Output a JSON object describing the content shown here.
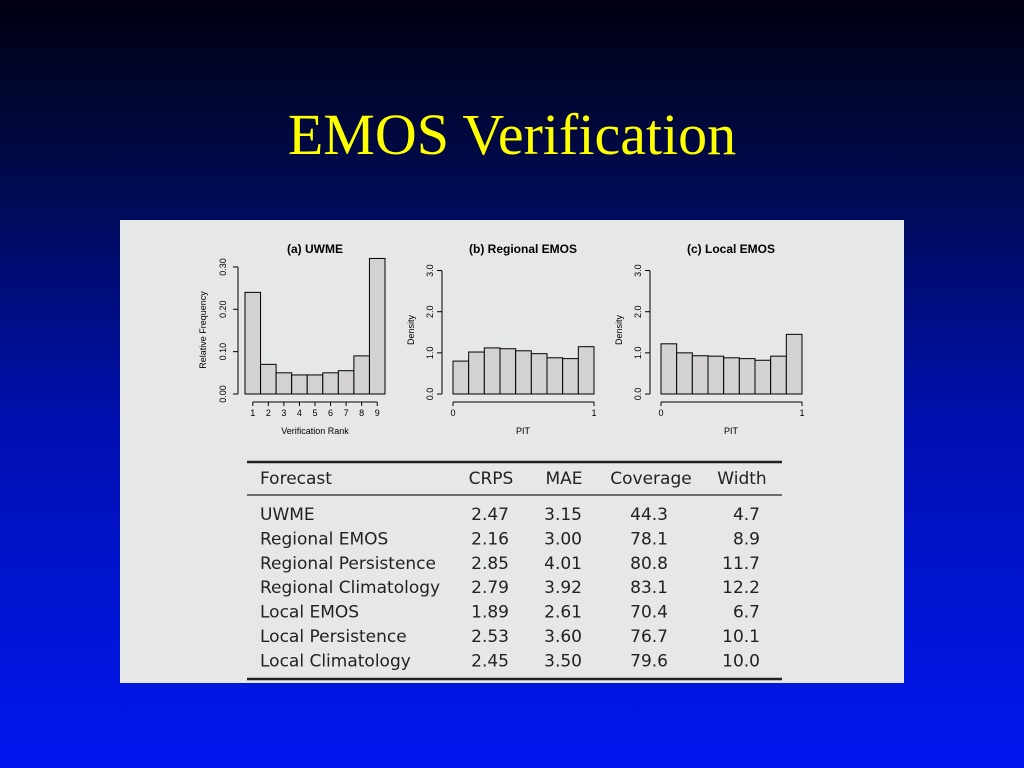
{
  "title": "EMOS Verification",
  "chart_data": [
    {
      "type": "bar",
      "title": "(a) UWME",
      "xlabel": "Verification Rank",
      "ylabel": "Relative Frequency",
      "categories": [
        "1",
        "2",
        "3",
        "4",
        "5",
        "6",
        "7",
        "8",
        "9"
      ],
      "values": [
        0.24,
        0.07,
        0.05,
        0.045,
        0.045,
        0.05,
        0.055,
        0.09,
        0.32
      ],
      "ylim": [
        0,
        0.34
      ],
      "yticks": [
        "0.00",
        "0.10",
        "0.20",
        "0.30"
      ],
      "ytick_values": [
        0,
        0.1,
        0.2,
        0.3
      ]
    },
    {
      "type": "bar",
      "title": "(b) Regional EMOS",
      "xlabel": "PIT",
      "ylabel": "Density",
      "x_tick_labels": [
        "0",
        "1"
      ],
      "values": [
        0.8,
        1.02,
        1.12,
        1.1,
        1.05,
        0.98,
        0.88,
        0.86,
        1.15
      ],
      "ylim": [
        0,
        3.5
      ],
      "yticks": [
        "0.0",
        "1.0",
        "2.0",
        "3.0"
      ],
      "ytick_values": [
        0,
        1,
        2,
        3
      ]
    },
    {
      "type": "bar",
      "title": "(c) Local EMOS",
      "xlabel": "PIT",
      "ylabel": "Density",
      "x_tick_labels": [
        "0",
        "1"
      ],
      "values": [
        1.22,
        1.0,
        0.93,
        0.92,
        0.88,
        0.86,
        0.82,
        0.92,
        1.45
      ],
      "ylim": [
        0,
        3.5
      ],
      "yticks": [
        "0.0",
        "1.0",
        "2.0",
        "3.0"
      ],
      "ytick_values": [
        0,
        1,
        2,
        3
      ]
    },
    {
      "type": "table",
      "columns": [
        "Forecast",
        "CRPS",
        "MAE",
        "Coverage",
        "Width"
      ],
      "rows": [
        [
          "UWME",
          "2.47",
          "3.15",
          "44.3",
          "4.7"
        ],
        [
          "Regional EMOS",
          "2.16",
          "3.00",
          "78.1",
          "8.9"
        ],
        [
          "Regional Persistence",
          "2.85",
          "4.01",
          "80.8",
          "11.7"
        ],
        [
          "Regional Climatology",
          "2.79",
          "3.92",
          "83.1",
          "12.2"
        ],
        [
          "Local EMOS",
          "1.89",
          "2.61",
          "70.4",
          "6.7"
        ],
        [
          "Local Persistence",
          "2.53",
          "3.60",
          "76.7",
          "10.1"
        ],
        [
          "Local Climatology",
          "2.45",
          "3.50",
          "79.6",
          "10.0"
        ]
      ]
    }
  ],
  "colors": {
    "title": "#ffff00",
    "bar_fill": "#d3d1d1",
    "panel_bg": "#e6e8e8"
  }
}
